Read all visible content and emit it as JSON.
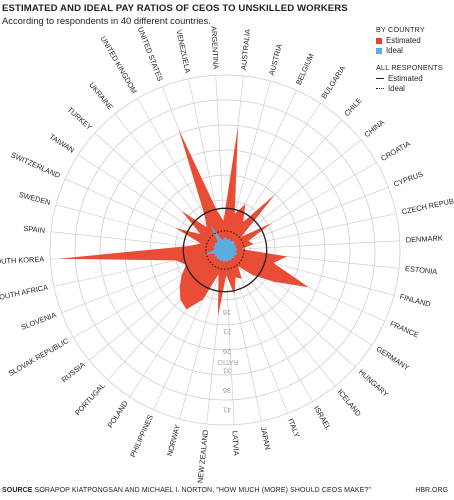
{
  "header": {
    "title": "ESTIMATED AND IDEAL PAY RATIOS OF CEOS TO UNSKILLED WORKERS",
    "subtitle": "According to respondents in 40 different countries."
  },
  "legend": {
    "by_country_label": "BY COUNTRY",
    "estimated_label": "Estimated",
    "ideal_label": "Ideal",
    "all_respondents_label": "ALL RESPONENTS",
    "all_estimated_label": "Estimated",
    "all_ideal_label": "Ideal"
  },
  "footer": {
    "source_prefix": "SOURCE",
    "source_text": "SORAPOP KIATPONGSAN AND MICHAEL I. NORTON, \"HOW MUCH (MORE) SHOULD CEOS MAKE?\"",
    "site": "HBR.ORG"
  },
  "colors": {
    "estimated": "#e8432a",
    "ideal": "#5aaee0",
    "grid": "#c8c8c8",
    "text": "#231f20"
  },
  "chart_data": {
    "type": "radar",
    "title": "ESTIMATED AND IDEAL PAY RATIOS OF CEOS TO UNSKILLED WORKERS",
    "radial_axis_label": "RATIO",
    "radial_tick_labels": [
      "16",
      "21",
      "26",
      "31",
      "36",
      "41"
    ],
    "grid": true,
    "legend_position": "top-right",
    "categories": [
      "AUSTRALIA",
      "AUSTRIA",
      "BELGIUM",
      "BULGARIA",
      "CHILE",
      "CHINA",
      "CROATIA",
      "CYPRUS",
      "CZECH REPUBLIC",
      "DENMARK",
      "ESTONIA",
      "FINLAND",
      "FRANCE",
      "GERMANY",
      "HUNGARY",
      "ICELAND",
      "ISRAEL",
      "ITALY",
      "JAPAN",
      "LATVIA",
      "NEW ZEALAND",
      "NORWAY",
      "PHILIPPINES",
      "POLAND",
      "PORTUGAL",
      "RUSSIA",
      "SLOVAK REPUBLIC",
      "SLOVENIA",
      "SOUTH AFRICA",
      "SOUTH KOREA",
      "SPAIN",
      "SWEDEN",
      "SWITZERLAND",
      "TAIWAN",
      "TURKEY",
      "UKRAINE",
      "UNITED KINGDOM",
      "UNITED STATES",
      "VENEZUELA",
      "ARGENTINA"
    ],
    "series": [
      {
        "name": "Estimated",
        "values": [
          30,
          9,
          12,
          8,
          18,
          5,
          13,
          6,
          7,
          4,
          15,
          12,
          22,
          14,
          9,
          5,
          8,
          7,
          11,
          6,
          16,
          6,
          13,
          17,
          16,
          14,
          12,
          10,
          12,
          40,
          9,
          6,
          13,
          7,
          14,
          7,
          10,
          31,
          10,
          7
        ]
      },
      {
        "name": "Ideal",
        "values": [
          3,
          2.5,
          3,
          2.5,
          3,
          3,
          2.5,
          3,
          2.5,
          3,
          2.5,
          3,
          3,
          2.5,
          3,
          2.5,
          3,
          2.5,
          3,
          2.5,
          3,
          2.5,
          3,
          2.5,
          3,
          2.5,
          3,
          2.5,
          5,
          3,
          2.5,
          3,
          2.5,
          3,
          2.5,
          3,
          7,
          3,
          2.5,
          3
        ]
      }
    ],
    "all_respondents": {
      "estimated": 10,
      "ideal": 4.6
    }
  }
}
